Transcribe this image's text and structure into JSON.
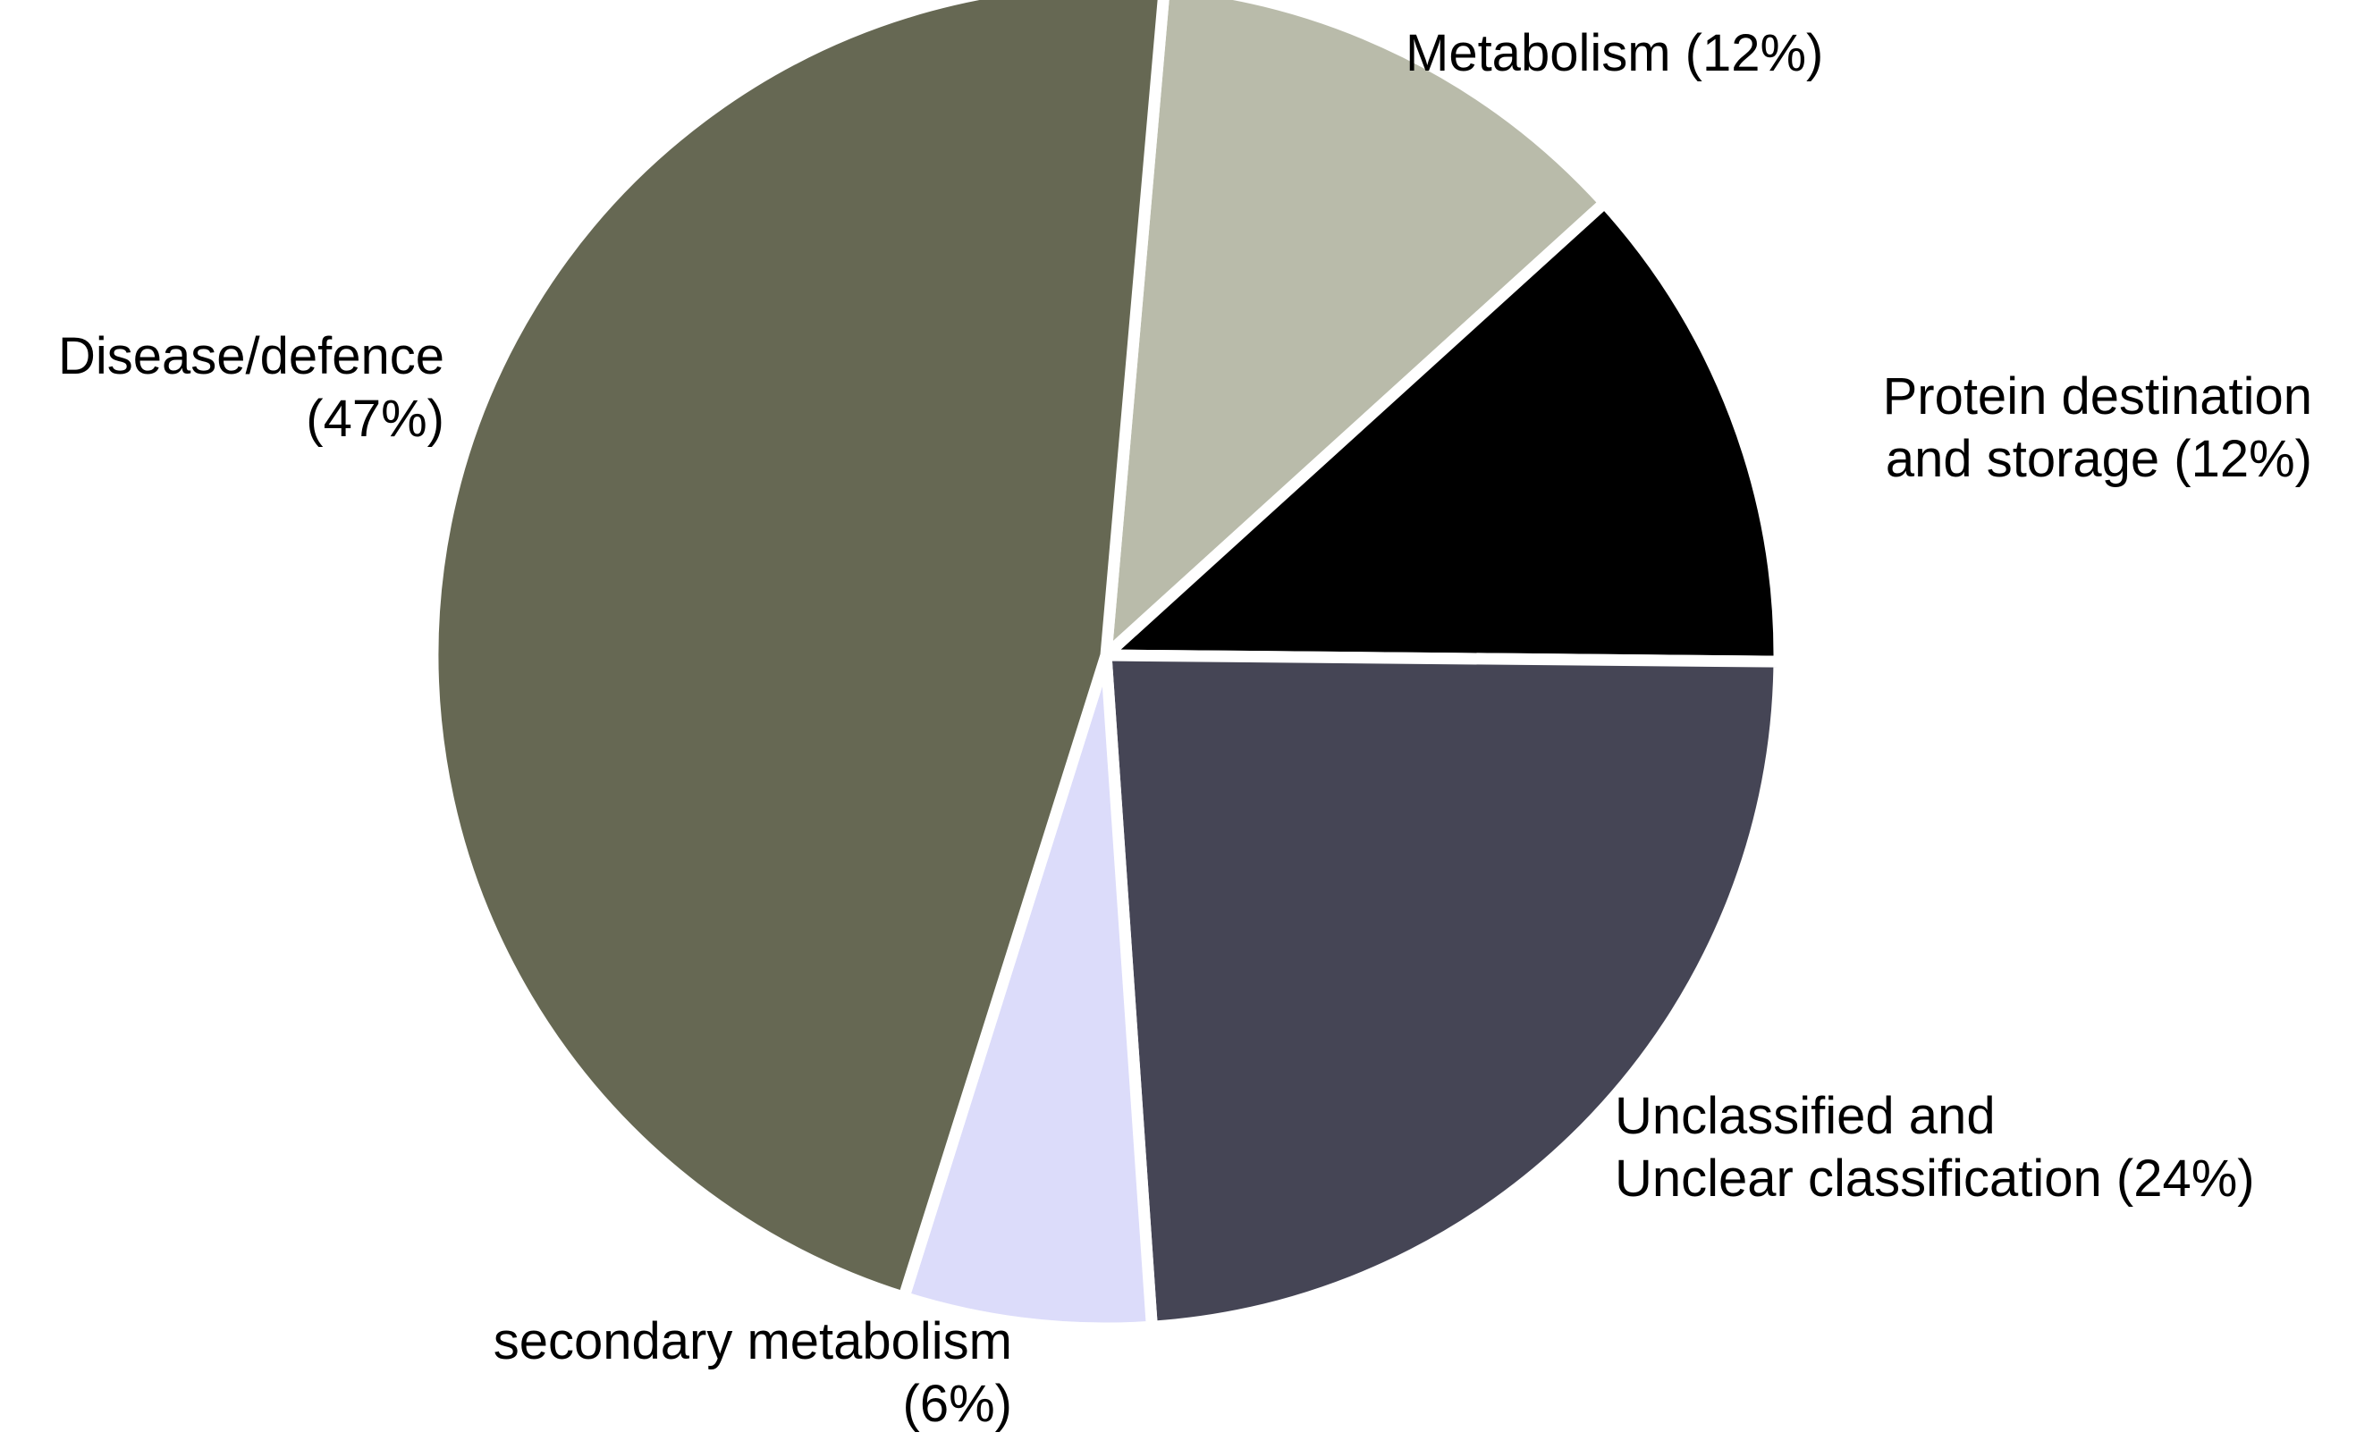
{
  "chart_data": {
    "type": "pie",
    "title": "",
    "start_angle_deg": 5,
    "direction": "clockwise",
    "slices": [
      {
        "category": "Metabolism",
        "value": 12,
        "color": "#b9bbaa",
        "label_lines": [
          "Metabolism (12%)"
        ],
        "label_anchor": "start"
      },
      {
        "category": "Protein destination and storage",
        "value": 12,
        "color": "#000000",
        "label_lines": [
          "Protein destination",
          "and storage (12%)"
        ],
        "label_anchor": "end"
      },
      {
        "category": "Unclassified and Unclear classification",
        "value": 24,
        "color": "#454555",
        "label_lines": [
          "Unclassified and",
          "Unclear classification (24%)"
        ],
        "label_anchor": "start"
      },
      {
        "category": "secondary metabolism",
        "value": 6,
        "color": "#dcdcfa",
        "label_lines": [
          "secondary metabolism",
          "(6%)"
        ],
        "label_anchor": "end"
      },
      {
        "category": "Disease/defence",
        "value": 47,
        "color": "#666853",
        "label_lines": [
          "Disease/defence",
          "(47%)"
        ],
        "label_anchor": "end"
      }
    ]
  }
}
